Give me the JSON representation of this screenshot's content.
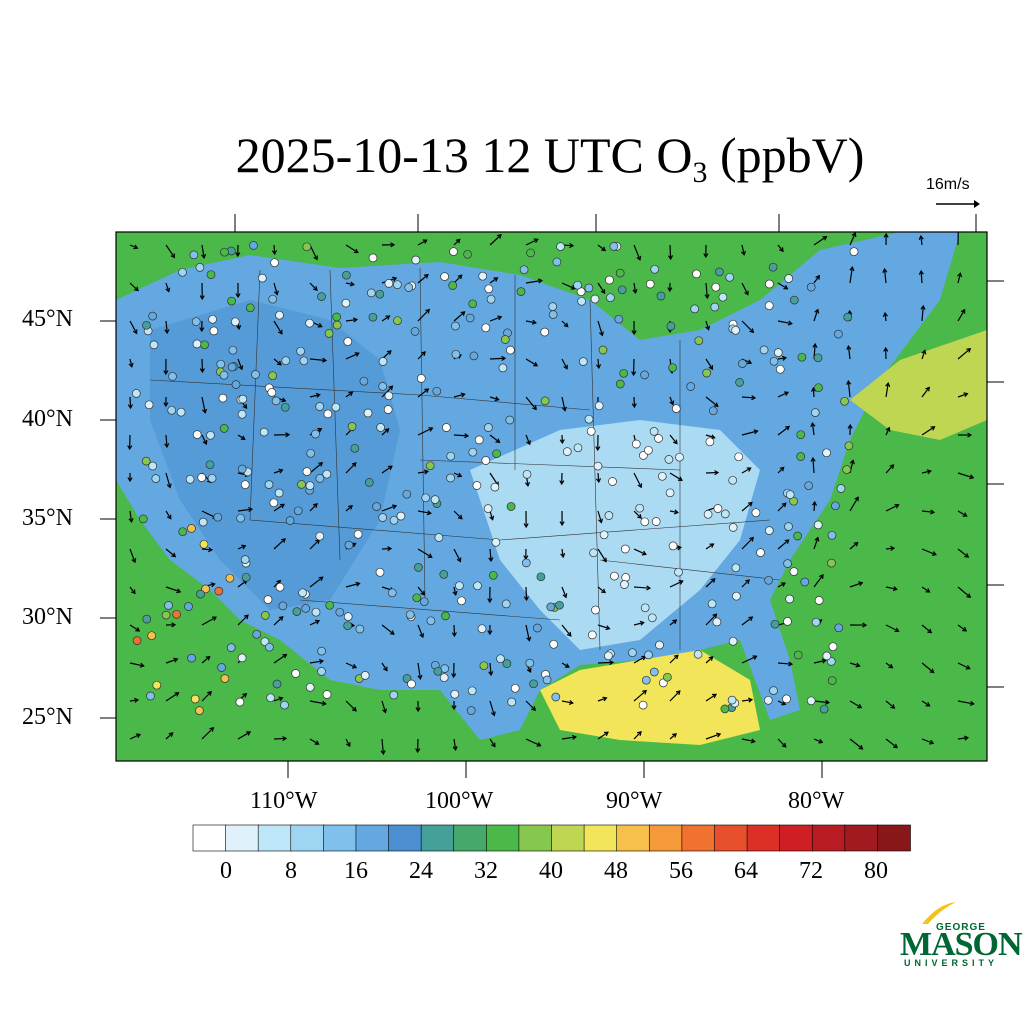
{
  "title": {
    "date_time": "2025-10-13 12 UTC",
    "species": "O",
    "subscript": "3",
    "units": "(ppbV)"
  },
  "reference_vector": {
    "label": "16m/s"
  },
  "latitude_labels": [
    "45°N",
    "40°N",
    "35°N",
    "30°N",
    "25°N"
  ],
  "longitude_labels": [
    "110°W",
    "100°W",
    "90°W",
    "80°W"
  ],
  "colorbar": {
    "labels": [
      "0",
      "8",
      "16",
      "24",
      "32",
      "40",
      "48",
      "56",
      "64",
      "72",
      "80"
    ],
    "colors": [
      "#ffffff",
      "#dff2fb",
      "#bde6f8",
      "#9dd5f3",
      "#7fc0ec",
      "#63a8e0",
      "#4b8fd1",
      "#45a09a",
      "#46a86a",
      "#4bb84a",
      "#86c84e",
      "#bfd653",
      "#f2e55a",
      "#f7c04a",
      "#f49a3a",
      "#f07130",
      "#e84f2c",
      "#dc3027",
      "#d01f24",
      "#b81c22",
      "#a01a20",
      "#891719"
    ]
  },
  "map": {
    "ocean_color": "#4bb84a",
    "land_low_color": "#63a8e0",
    "land_high_color": "#4b8fd1",
    "clean_color": "#bde6f8",
    "gulf_color": "#f2e55a"
  },
  "logo": {
    "line1": "GEORGE",
    "line2": "MASON",
    "line3": "UNIVERSITY"
  }
}
